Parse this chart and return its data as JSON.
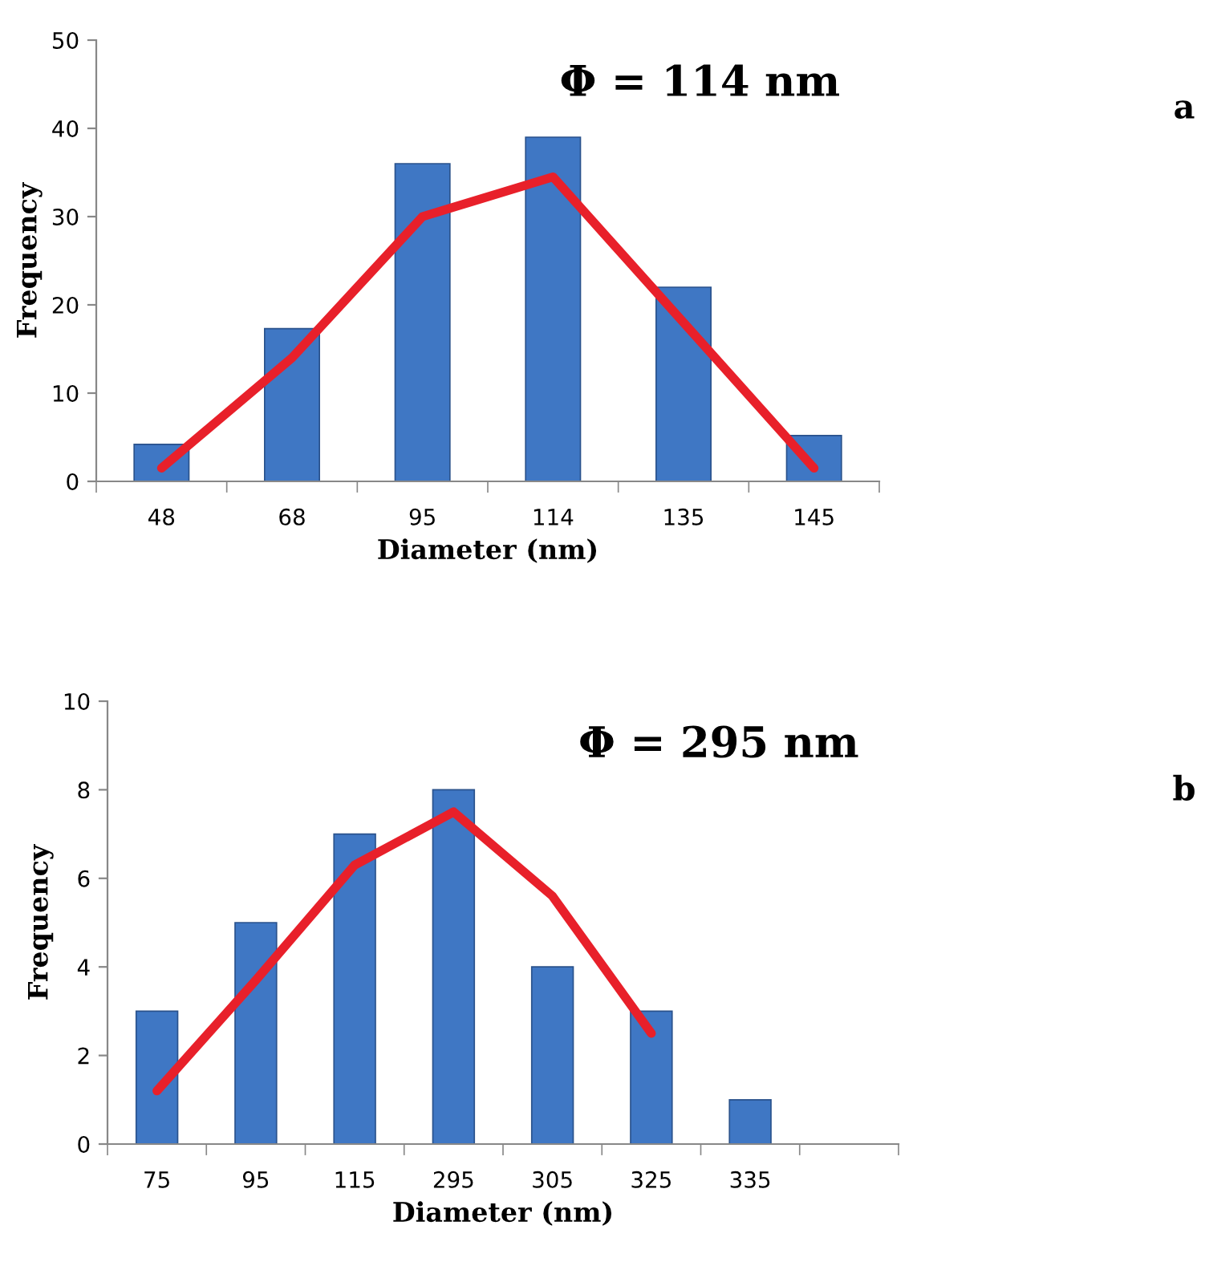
{
  "chart_data": [
    {
      "type": "bar",
      "xlabel": "Diameter (nm)",
      "ylabel": "Frequency",
      "categories": [
        "48",
        "68",
        "95",
        "114",
        "135",
        "145"
      ],
      "series": [
        {
          "color": "#3f77c4",
          "values": [
            4.2,
            17.3,
            36,
            39,
            22,
            5.2
          ]
        },
        {
          "type": "line",
          "color": "#e8202a",
          "values": [
            1.5,
            14,
            30,
            34.5,
            18,
            1.5
          ]
        }
      ],
      "ylim": [
        0,
        50
      ],
      "yticks": [
        0,
        10,
        20,
        30,
        40,
        50
      ],
      "annotations": [
        "Φ = 114 nm",
        "a"
      ]
    },
    {
      "type": "bar",
      "xlabel": "Diameter (nm)",
      "ylabel": "Frequency",
      "categories": [
        "75",
        "95",
        "115",
        "295",
        "305",
        "325",
        "335",
        null
      ],
      "series": [
        {
          "color": "#3f77c4",
          "values": [
            3,
            5,
            7,
            8,
            4,
            3,
            1,
            null
          ]
        },
        {
          "type": "line",
          "color": "#e8202a",
          "values": [
            1.2,
            3.7,
            6.3,
            7.5,
            5.6,
            2.5,
            null,
            null
          ]
        }
      ],
      "ylim": [
        0,
        10
      ],
      "yticks": [
        0,
        2,
        4,
        6,
        8,
        10
      ],
      "annotations": [
        "Φ = 295 nm",
        "b"
      ]
    }
  ]
}
